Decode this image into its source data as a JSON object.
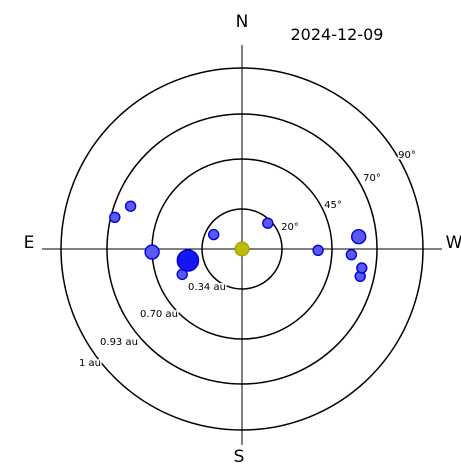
{
  "date": "2024-12-09",
  "compass": {
    "north": "N",
    "south": "S",
    "east": "E",
    "west": "W"
  },
  "distance_labels": [
    "0.34 au",
    "0.70 au",
    "0.93 au",
    "1 au"
  ],
  "angle_labels": [
    "20°",
    "45°",
    "70°",
    "90°"
  ],
  "colors": {
    "sun": "#bbbb00",
    "sun_edge": "#9b9b00",
    "object_fill": "#5a5af2",
    "object_edge": "#0000dd",
    "large_object_fill": "#1515f6"
  },
  "chart_data": {
    "type": "scatter",
    "description": "",
    "rings_au": [
      0.34,
      0.7,
      0.93,
      1
    ],
    "center": {
      "name": "",
      "r_au": 0,
      "az_deg": 0
    },
    "objects": [
      {
        "r_au": 0.52,
        "az_deg": 113,
        "size": "small"
      },
      {
        "r_au": 0.45,
        "az_deg": 99,
        "size": "medium"
      },
      {
        "r_au": 0.27,
        "az_deg": 63,
        "size": "small"
      },
      {
        "r_au": 0.31,
        "az_deg": -45,
        "size": "small"
      },
      {
        "r_au": 0.45,
        "az_deg": 102,
        "size": "large"
      },
      {
        "r_au": 0.85,
        "az_deg": 69,
        "size": "small"
      },
      {
        "r_au": 0.86,
        "az_deg": -103,
        "size": "small"
      },
      {
        "r_au": 0.86,
        "az_deg": -99,
        "size": "small"
      },
      {
        "r_au": 0.84,
        "az_deg": -84,
        "size": "medium"
      },
      {
        "r_au": 0.8,
        "az_deg": -93,
        "size": "small"
      },
      {
        "r_au": 0.6,
        "az_deg": -91,
        "size": "small"
      },
      {
        "r_au": 0.7,
        "az_deg": 92,
        "size": "medium"
      },
      {
        "r_au": 0.91,
        "az_deg": 76,
        "size": "small"
      }
    ]
  }
}
